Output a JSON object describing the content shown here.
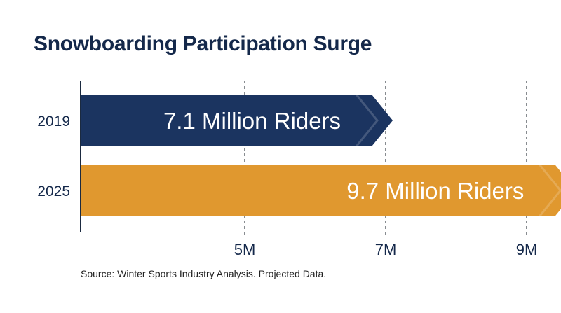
{
  "chart_data": {
    "type": "bar",
    "orientation": "horizontal",
    "title": "Snowboarding Participation Surge",
    "categories": [
      "2019",
      "2025"
    ],
    "values": [
      7.1,
      9.7
    ],
    "data_labels": [
      "7.1 Million Riders",
      "9.7 Million Riders"
    ],
    "bar_colors": [
      "#1b3460",
      "#e0982f"
    ],
    "x_ticks": [
      {
        "value": 5,
        "label": "5M"
      },
      {
        "value": 7,
        "label": "7M"
      },
      {
        "value": 9,
        "label": "9M"
      }
    ],
    "grid": "dashed vertical lines at ticks",
    "footnote": "Source: Winter Sports Industry Analysis. Projected Data."
  }
}
